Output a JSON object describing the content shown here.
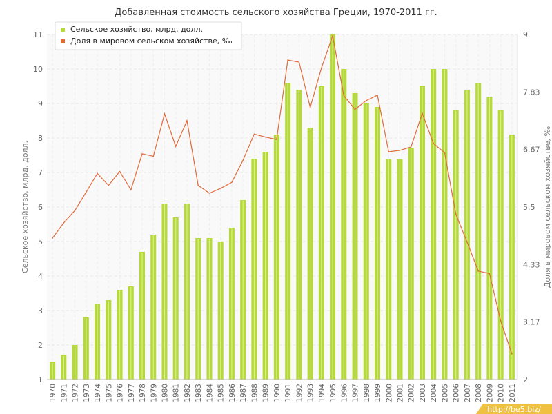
{
  "chart_data": {
    "type": "bar",
    "title": "Добавленная стоимость сельского хозяйства Греции, 1970-2011 гг.",
    "categories": [
      "1970",
      "1971",
      "1972",
      "1973",
      "1974",
      "1975",
      "1976",
      "1977",
      "1978",
      "1979",
      "1980",
      "1981",
      "1982",
      "1983",
      "1984",
      "1985",
      "1986",
      "1987",
      "1988",
      "1989",
      "1990",
      "1991",
      "1992",
      "1993",
      "1994",
      "1995",
      "1996",
      "1997",
      "1998",
      "1999",
      "2000",
      "2001",
      "2002",
      "2003",
      "2004",
      "2005",
      "2006",
      "2007",
      "2008",
      "2009",
      "2010",
      "2011"
    ],
    "series": [
      {
        "name": "Сельское хозяйство, млрд. долл.",
        "type": "bar",
        "axis": "left",
        "color": "#b5d93a",
        "values": [
          1.5,
          1.7,
          2.0,
          2.8,
          3.2,
          3.3,
          3.6,
          3.7,
          4.7,
          5.2,
          6.1,
          5.7,
          6.1,
          5.1,
          5.1,
          5.0,
          5.4,
          6.2,
          7.4,
          7.6,
          8.1,
          9.6,
          9.4,
          8.3,
          9.5,
          11.0,
          10.0,
          9.3,
          9.0,
          8.9,
          7.4,
          7.4,
          7.7,
          9.5,
          10.0,
          10.0,
          8.8,
          9.4,
          9.6,
          9.2,
          8.8,
          8.1
        ]
      },
      {
        "name": "Доля в мировом сельском хозяйстве, ‰",
        "type": "line",
        "axis": "right",
        "color": "#e06a3a",
        "values": [
          4.87,
          5.18,
          5.43,
          5.8,
          6.18,
          5.94,
          6.22,
          5.85,
          6.58,
          6.53,
          7.39,
          6.73,
          7.25,
          5.94,
          5.78,
          5.88,
          6.0,
          6.45,
          6.98,
          6.92,
          6.87,
          8.48,
          8.44,
          7.52,
          8.32,
          8.97,
          7.76,
          7.48,
          7.66,
          7.77,
          6.62,
          6.65,
          6.72,
          7.4,
          6.79,
          6.6,
          5.35,
          4.79,
          4.2,
          4.15,
          3.19,
          2.52
        ]
      }
    ],
    "xlabel": "",
    "ylabel": "Сельское хозяйство, млрд. долл.",
    "y2label": "Доля в мировом сельском хозяйстве, ‰",
    "ylim": [
      1,
      11
    ],
    "y2lim": [
      2,
      9
    ],
    "yticks": [
      "1",
      "2",
      "3",
      "4",
      "5",
      "6",
      "7",
      "8",
      "9",
      "10",
      "11"
    ],
    "y2ticks": [
      "2",
      "3.17",
      "4.33",
      "5.5",
      "6.67",
      "7.83",
      "9"
    ],
    "grid": true,
    "legend_position": "top-left"
  },
  "watermark": {
    "text": "http://be5.biz/",
    "color": "#f0c040"
  }
}
